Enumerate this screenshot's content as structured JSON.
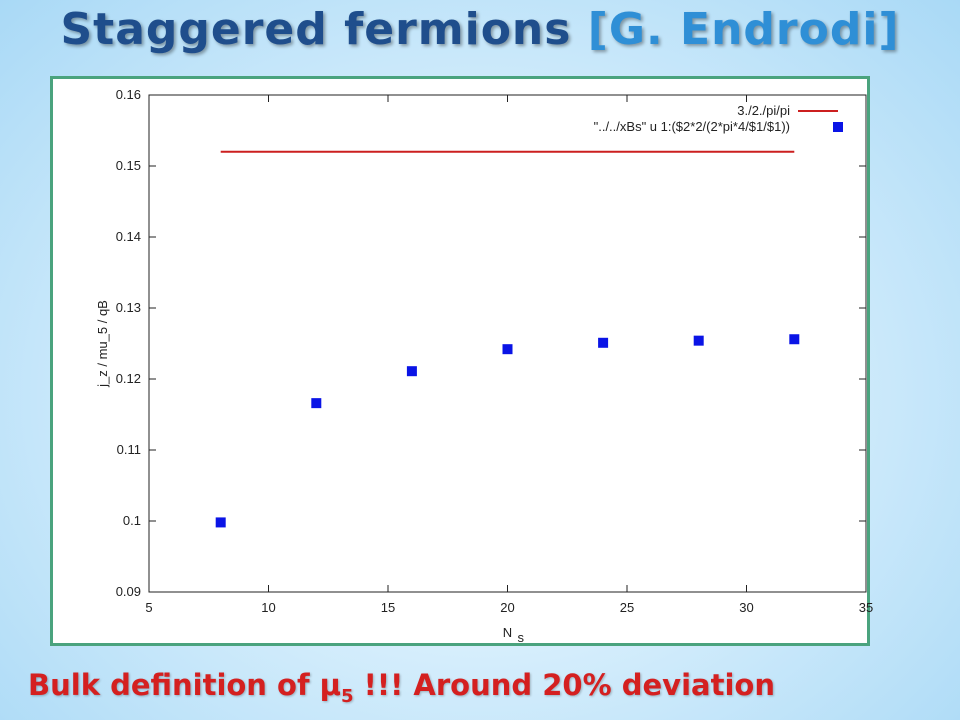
{
  "slide": {
    "title_main": "Staggered fermions ",
    "title_ref": "[G. Endrodi]",
    "footer_pre": "Bulk definition of μ",
    "footer_sub": "5",
    "footer_post": " !!! Around 20% deviation"
  },
  "chart_data": {
    "type": "scatter",
    "xlabel": "N",
    "xlabel_sub": "s",
    "ylabel": "j_z / mu_5 / qB",
    "xlim": [
      5,
      35
    ],
    "ylim": [
      0.09,
      0.16
    ],
    "x_ticks": [
      "5",
      "10",
      "15",
      "20",
      "25",
      "30",
      "35"
    ],
    "y_ticks": [
      "0.09",
      "0.1",
      "0.11",
      "0.12",
      "0.13",
      "0.14",
      "0.15",
      "0.16"
    ],
    "grid": false,
    "legend_position": "top-right",
    "colors": {
      "line": "#cc1f1f",
      "points": "#0a14e6"
    },
    "series": [
      {
        "name": "3./2./pi/pi",
        "kind": "line",
        "x": [
          8,
          32
        ],
        "values": [
          0.152,
          0.152
        ]
      },
      {
        "name": "\"../../xBs\" u 1:($2*2/(2*pi*4/$1/$1))",
        "kind": "points",
        "x": [
          8,
          12,
          16,
          20,
          24,
          28,
          32
        ],
        "values": [
          0.0998,
          0.1166,
          0.1211,
          0.1242,
          0.1251,
          0.1254,
          0.1256
        ]
      }
    ]
  }
}
